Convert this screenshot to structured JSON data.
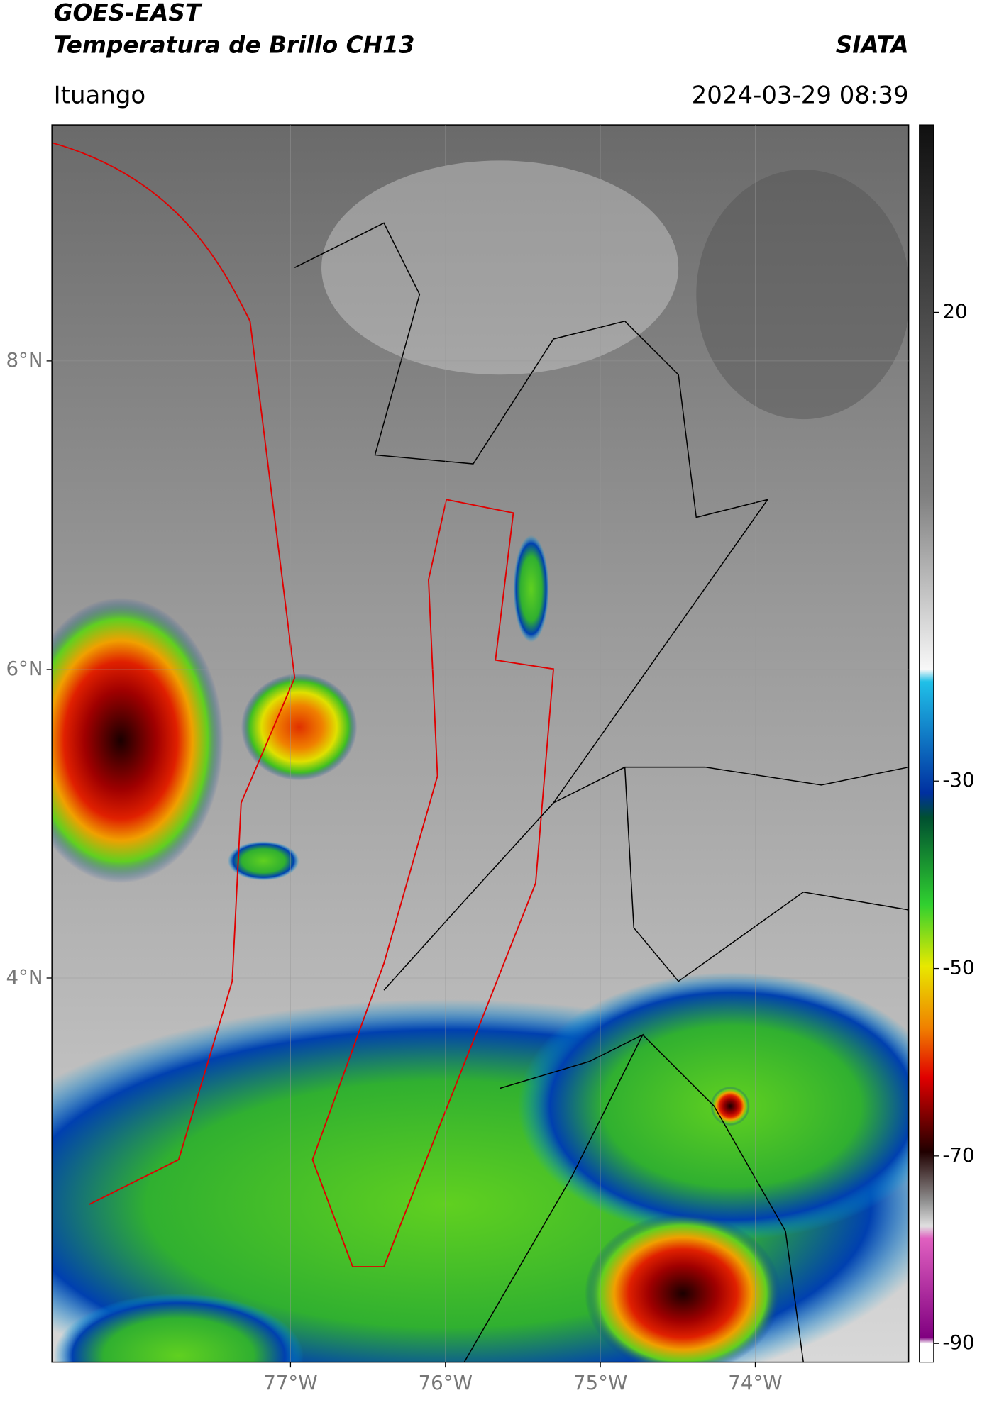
{
  "header": {
    "title": "GOES-EAST",
    "subtitle": "Temperatura de Brillo CH13",
    "agency": "SIATA",
    "location": "Ituango",
    "datetime": "2024-03-29 08:39"
  },
  "map": {
    "lonlim": [
      -78.54,
      -73.01
    ],
    "latlim": [
      1.51,
      9.53
    ],
    "xticks": [
      {
        "value": -77,
        "label": "77°W"
      },
      {
        "value": -76,
        "label": "76°W"
      },
      {
        "value": -75,
        "label": "75°W"
      },
      {
        "value": -74,
        "label": "74°W"
      }
    ],
    "yticks": [
      {
        "value": 8,
        "label": "8°N"
      },
      {
        "value": 6,
        "label": "6°N"
      },
      {
        "value": 4,
        "label": "4°N"
      }
    ],
    "grid": true
  },
  "colorbar": {
    "range": [
      -92,
      40
    ],
    "ticks": [
      20,
      -30,
      -50,
      -70,
      -90
    ]
  }
}
